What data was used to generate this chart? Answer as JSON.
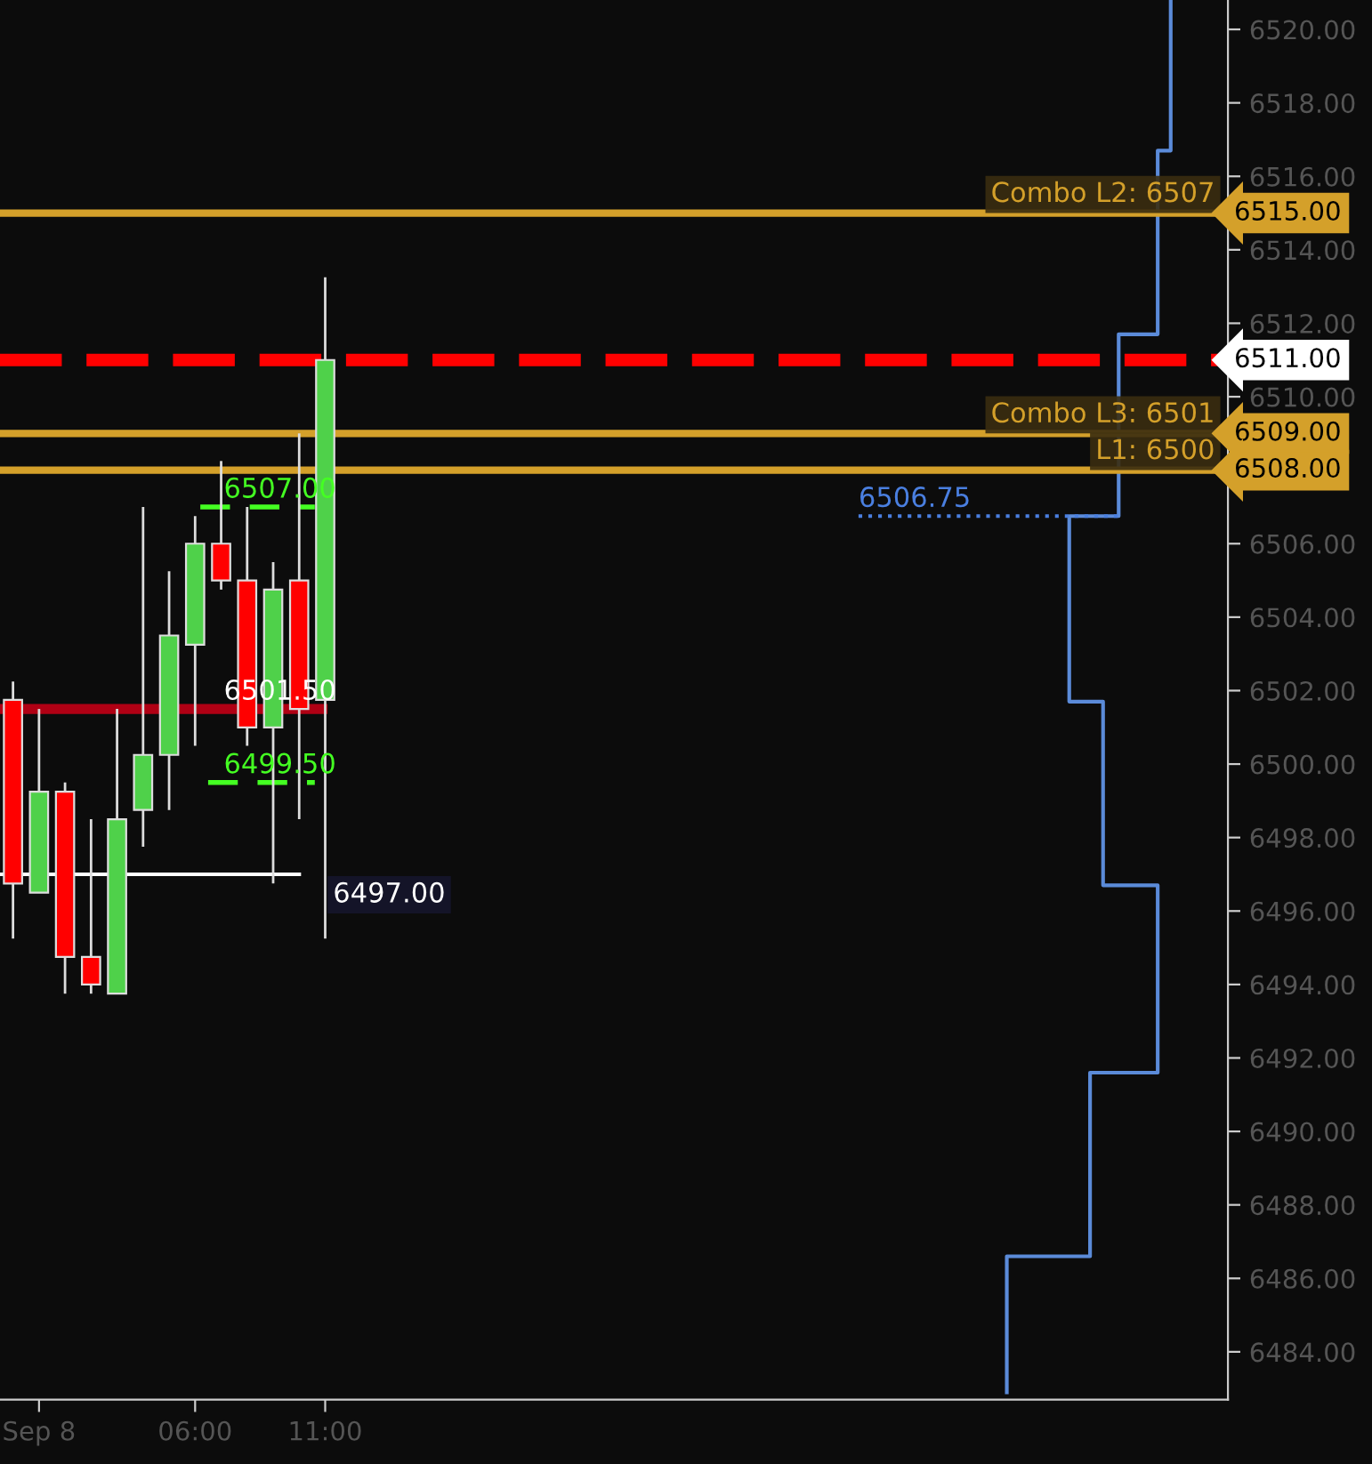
{
  "chart_data": {
    "type": "candlestick",
    "x": [
      -1,
      0,
      1,
      2,
      3,
      4,
      5,
      6,
      7,
      8,
      9,
      10,
      11
    ],
    "ohlc": [
      [
        6501.75,
        6502.25,
        6495.25,
        6496.75
      ],
      [
        6496.5,
        6501.5,
        6496.5,
        6499.25
      ],
      [
        6499.25,
        6499.5,
        6493.75,
        6494.75
      ],
      [
        6494.75,
        6498.5,
        6493.75,
        6494.0
      ],
      [
        6493.75,
        6501.5,
        6493.75,
        6498.5
      ],
      [
        6498.75,
        6507.0,
        6497.75,
        6500.25
      ],
      [
        6500.25,
        6505.25,
        6498.75,
        6503.5
      ],
      [
        6503.25,
        6506.75,
        6500.5,
        6506.0
      ],
      [
        6506.0,
        6508.25,
        6504.75,
        6505.0
      ],
      [
        6505.0,
        6507.0,
        6500.5,
        6501.0
      ],
      [
        6501.0,
        6505.5,
        6496.75,
        6504.75
      ],
      [
        6505.0,
        6509.0,
        6498.5,
        6501.5
      ],
      [
        6501.75,
        6513.25,
        6495.25,
        6511.0
      ]
    ],
    "colors": [
      "#ff0000",
      "#4fd14a",
      "#ff0000",
      "#ff0000",
      "#4fd14a",
      "#4fd14a",
      "#4fd14a",
      "#4fd14a",
      "#ff0000",
      "#ff0000",
      "#4fd14a",
      "#ff0000",
      "#4fd14a"
    ],
    "series": [
      {
        "type": "line",
        "color": "#5b8bd9",
        "x": [
          37.2,
          37.2,
          40.4,
          40.4,
          43.0,
          43.0,
          40.9,
          40.9,
          39.6,
          39.6,
          41.5,
          41.5,
          43.0,
          43.0,
          43.5,
          43.5
        ],
        "values": [
          6482.9,
          6486.6,
          6486.6,
          6491.6,
          6491.6,
          6496.7,
          6496.7,
          6501.7,
          6501.7,
          6506.75,
          6506.75,
          6511.7,
          6511.7,
          6516.7,
          6516.7,
          6520.8
        ]
      },
      {
        "type": "line",
        "color": "#4a7fe0",
        "line_style": "dotted",
        "x": [
          31.5,
          41.5
        ],
        "values": [
          6506.75,
          6506.75
        ]
      },
      {
        "type": "line",
        "color": "#44ff22",
        "line_style": "dashed",
        "x": [
          6.2,
          10.6
        ],
        "values": [
          6507.0,
          6507.0
        ]
      },
      {
        "type": "line",
        "color": "#44ff22",
        "line_style": "dashed",
        "x": [
          6.5,
          10.6
        ],
        "values": [
          6499.5,
          6499.5
        ]
      },
      {
        "type": "line",
        "color": "#ffffff",
        "x": [
          -1.5,
          10.0
        ],
        "values": [
          6497.0,
          6497.0
        ]
      },
      {
        "type": "line",
        "color": "#b00014",
        "x": [
          -1.5,
          10.9
        ],
        "values": [
          6501.5,
          6501.5
        ]
      }
    ],
    "ref_lines": [
      {
        "axis": "y",
        "value": 6515,
        "label": "6515.00",
        "color": "#d4a02a"
      },
      {
        "axis": "y",
        "value": 6511,
        "label": "6511.00",
        "color": "#ff0000",
        "line_style": "dashed"
      },
      {
        "axis": "y",
        "value": 6509,
        "label": "6509.00",
        "color": "#d4a02a"
      },
      {
        "axis": "y",
        "value": 6508,
        "label": "6508.00",
        "color": "#d4a02a"
      }
    ],
    "annotations": [
      {
        "text": "Combo L2: 6507",
        "x": 45.2,
        "y": 6515
      },
      {
        "text": "Combo L3: 6501",
        "x": 45.2,
        "y": 6509
      },
      {
        "text": "L1: 6500",
        "x": 45.2,
        "y": 6508
      },
      {
        "text": "6507.00",
        "x": 7.1,
        "y": 6507.0
      },
      {
        "text": "6499.50",
        "x": 7.1,
        "y": 6499.5
      },
      {
        "text": "6501.50",
        "x": 7.1,
        "y": 6501.5
      },
      {
        "text": "6497.00",
        "x": 11.3,
        "y": 6497.0
      },
      {
        "text": "6506.75",
        "x": 31.5,
        "y": 6506.75
      }
    ],
    "xlim": [
      -1.5,
      45.7
    ],
    "xticks": [
      {
        "value": 0,
        "label": "Sep 8"
      },
      {
        "value": 6,
        "label": "06:00"
      },
      {
        "value": 11,
        "label": "11:00"
      }
    ],
    "ylim": [
      6482.7,
      6520.8
    ],
    "yticks": [
      {
        "value": 6484,
        "label": "6484.00"
      },
      {
        "value": 6486,
        "label": "6486.00"
      },
      {
        "value": 6488,
        "label": "6488.00"
      },
      {
        "value": 6490,
        "label": "6490.00"
      },
      {
        "value": 6492,
        "label": "6492.00"
      },
      {
        "value": 6494,
        "label": "6494.00"
      },
      {
        "value": 6496,
        "label": "6496.00"
      },
      {
        "value": 6498,
        "label": "6498.00"
      },
      {
        "value": 6500,
        "label": "6500.00"
      },
      {
        "value": 6502,
        "label": "6502.00"
      },
      {
        "value": 6504,
        "label": "6504.00"
      },
      {
        "value": 6506,
        "label": "6506.00"
      },
      {
        "value": 6508,
        "label": null
      },
      {
        "value": 6510,
        "label": "6510.00"
      },
      {
        "value": 6512,
        "label": "6512.00"
      },
      {
        "value": 6514,
        "label": "6514.00"
      },
      {
        "value": 6516,
        "label": "6516.00"
      },
      {
        "value": 6518,
        "label": "6518.00"
      },
      {
        "value": 6520,
        "label": "6520.00"
      }
    ],
    "grid": false
  }
}
